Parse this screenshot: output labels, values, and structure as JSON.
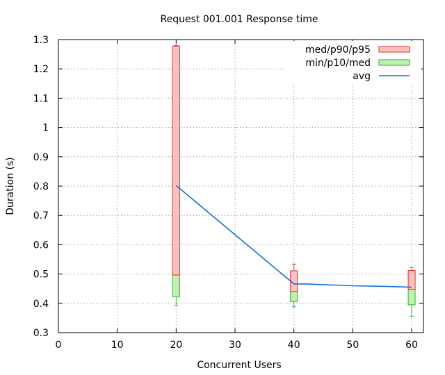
{
  "chart_data": {
    "type": "box",
    "title": "Request 001.001 Response time",
    "xlabel": "Concurrent Users",
    "ylabel": "Duration (s)",
    "xlim": [
      0,
      62
    ],
    "ylim": [
      0.3,
      1.3
    ],
    "xticks": [
      0,
      10,
      20,
      30,
      40,
      50,
      60
    ],
    "xtick_labels": [
      "0",
      "10",
      "20",
      "30",
      "40",
      "50",
      "60"
    ],
    "yticks": [
      0.3,
      0.4,
      0.5,
      0.6,
      0.7,
      0.8,
      0.9,
      1.0,
      1.1,
      1.2,
      1.3
    ],
    "ytick_labels": [
      "0.3",
      "0.4",
      "0.5",
      "0.6",
      "0.7",
      "0.8",
      "0.9",
      "1",
      "1.1",
      "1.2",
      "1.3"
    ],
    "grid": true,
    "legend_position": "top-right",
    "legend": [
      {
        "label": "med/p90/p95",
        "kind": "box",
        "fill": "#ffc0c0",
        "stroke": "#e03030"
      },
      {
        "label": "min/p10/med",
        "kind": "box",
        "fill": "#c0f0b0",
        "stroke": "#30b030"
      },
      {
        "label": "avg",
        "kind": "line",
        "stroke": "#1070e0"
      }
    ],
    "points": [
      {
        "x": 20,
        "min": 0.392,
        "p10": 0.422,
        "med": 0.497,
        "p90": 1.278,
        "p95": 1.28
      },
      {
        "x": 40,
        "min": 0.388,
        "p10": 0.406,
        "med": 0.44,
        "p90": 0.511,
        "p95": 0.534
      },
      {
        "x": 60,
        "min": 0.356,
        "p10": 0.395,
        "med": 0.448,
        "p90": 0.512,
        "p95": 0.522
      }
    ],
    "avg": {
      "x": [
        20,
        40,
        42,
        50,
        55,
        60
      ],
      "y": [
        0.802,
        0.466,
        0.466,
        0.46,
        0.458,
        0.455
      ]
    }
  }
}
